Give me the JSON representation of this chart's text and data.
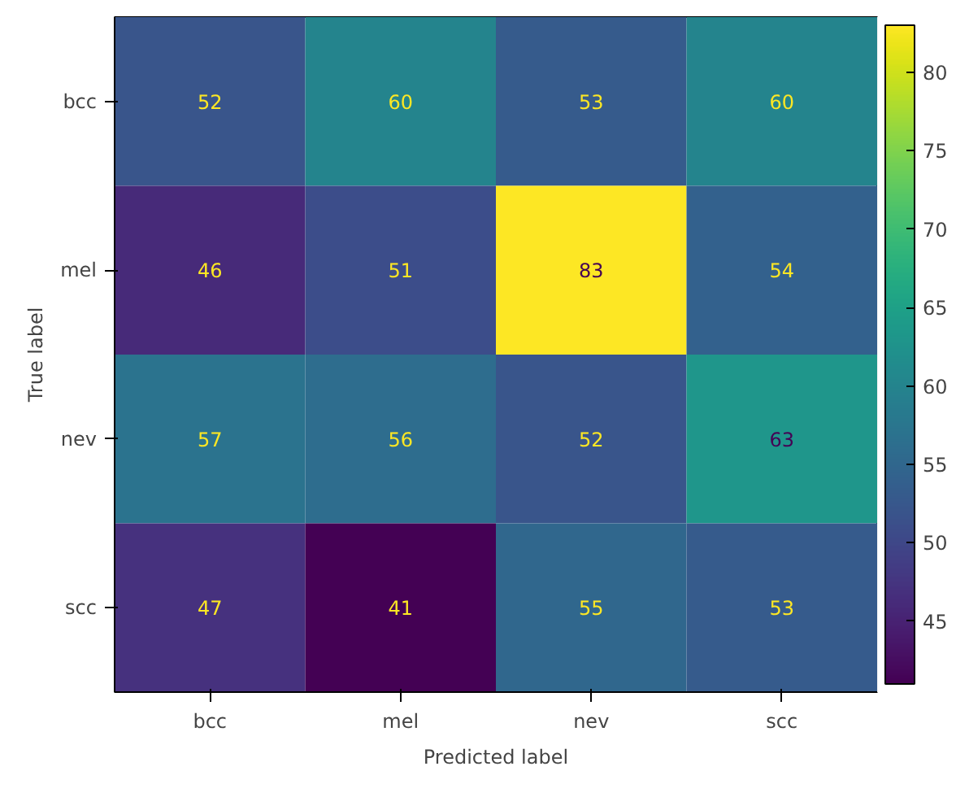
{
  "chart_data": {
    "type": "heatmap",
    "xlabel": "Predicted label",
    "ylabel": "True label",
    "categories": [
      "bcc",
      "mel",
      "nev",
      "scc"
    ],
    "y_categories": [
      "bcc",
      "mel",
      "nev",
      "scc"
    ],
    "cells": [
      [
        52,
        60,
        53,
        60
      ],
      [
        46,
        51,
        83,
        54
      ],
      [
        57,
        56,
        52,
        63
      ],
      [
        47,
        41,
        55,
        53
      ]
    ],
    "data_labels": true,
    "clim": [
      41,
      83
    ],
    "cticks": [
      45,
      50,
      55,
      60,
      65,
      70,
      75,
      80
    ]
  }
}
